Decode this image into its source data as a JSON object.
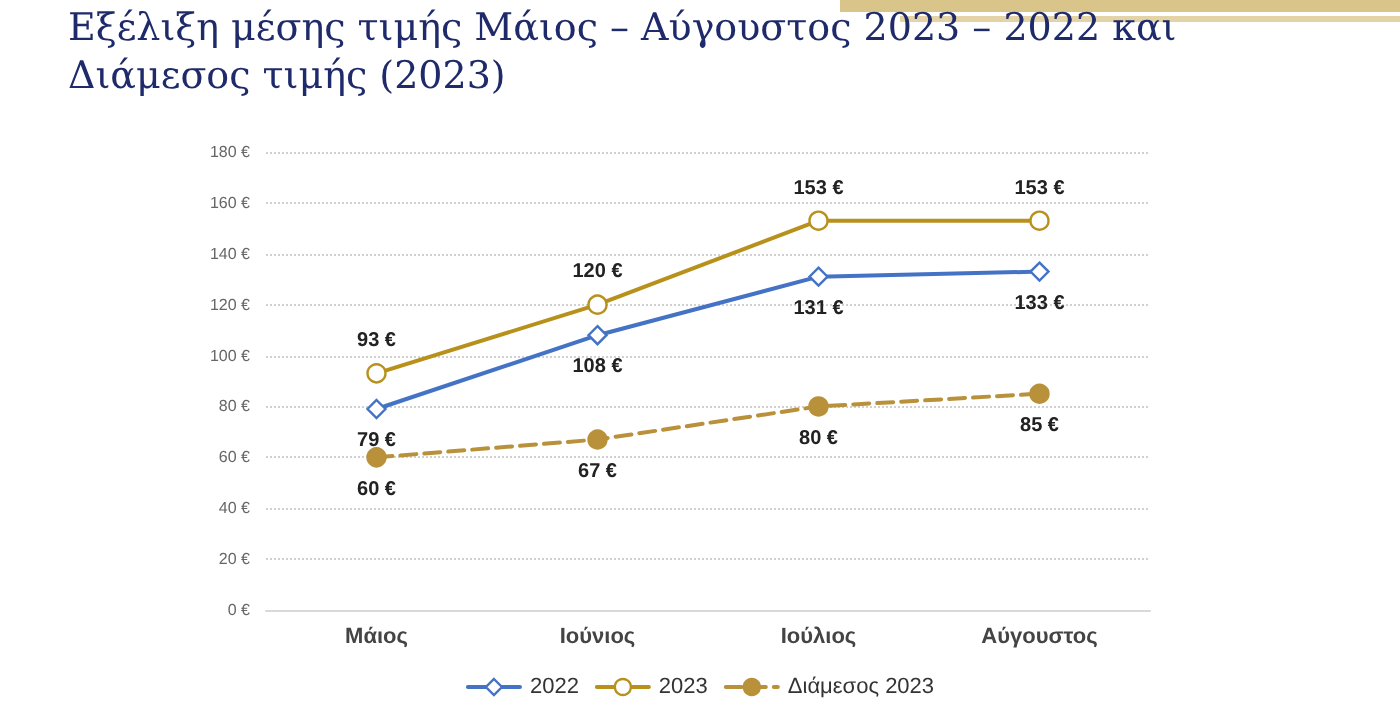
{
  "chart_data": {
    "type": "line",
    "title": "Εξέλιξη μέσης τιμής Μάιος – Αύγουστος 2023 – 2022 και Διάμεσος τιμής (2023)",
    "categories": [
      "Μάιος",
      "Ιούνιος",
      "Ιούλιος",
      "Αύγουστος"
    ],
    "series": [
      {
        "name": "2022",
        "color": "#4472c4",
        "values": [
          79,
          108,
          131,
          133
        ],
        "value_labels": [
          "79 €",
          "108 €",
          "131 €",
          "133 €"
        ],
        "marker": "diamond",
        "line_style": "solid"
      },
      {
        "name": "2023",
        "color": "#b8911c",
        "values": [
          93,
          120,
          153,
          153
        ],
        "value_labels": [
          "93 €",
          "120 €",
          "153 €",
          "153 €"
        ],
        "marker": "circle",
        "line_style": "solid"
      },
      {
        "name": "Διάμεσος 2023",
        "color": "#b8913a",
        "values": [
          60,
          67,
          80,
          85
        ],
        "value_labels": [
          "60 €",
          "67 €",
          "80 €",
          "85 €"
        ],
        "marker": "circle",
        "line_style": "dashed"
      }
    ],
    "ylim": [
      0,
      180
    ],
    "yticks": [
      {
        "value": 0,
        "label": "0 €"
      },
      {
        "value": 20,
        "label": "20 €"
      },
      {
        "value": 40,
        "label": "40 €"
      },
      {
        "value": 60,
        "label": "60 €"
      },
      {
        "value": 80,
        "label": "80 €"
      },
      {
        "value": 100,
        "label": "100 €"
      },
      {
        "value": 120,
        "label": "120 €"
      },
      {
        "value": 140,
        "label": "140 €"
      },
      {
        "value": 160,
        "label": "160 €"
      },
      {
        "value": 180,
        "label": "180 €"
      }
    ],
    "grid": "y",
    "legend": "bottom"
  }
}
